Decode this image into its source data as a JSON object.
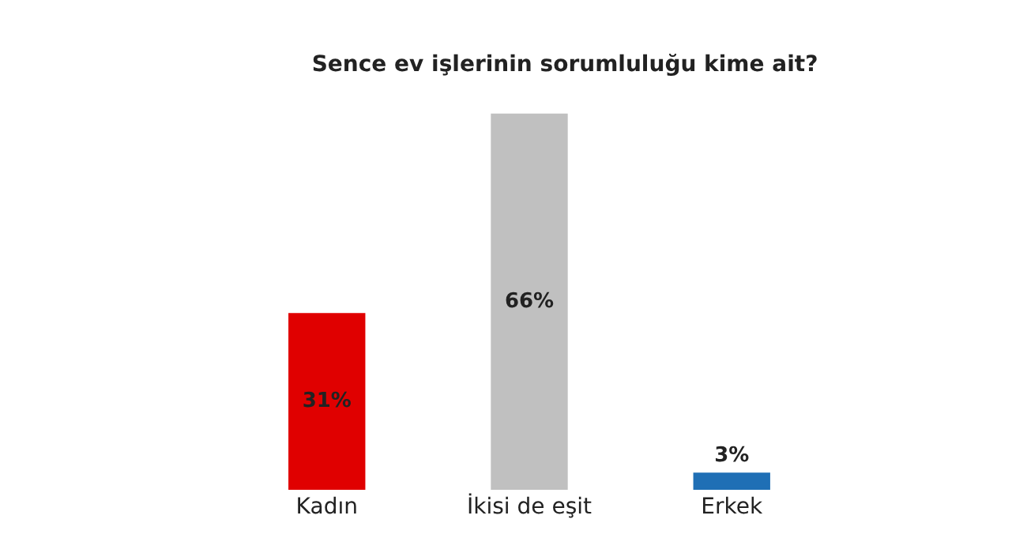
{
  "chart_data": {
    "type": "bar",
    "title": "Sence ev işlerinin sorumluluğu kime ait?",
    "categories": [
      "Kadın",
      "İkisi de eşit",
      "Erkek"
    ],
    "values": [
      31,
      66,
      3
    ],
    "colors": [
      "#e00000",
      "#c0c0c0",
      "#1f6fb5"
    ],
    "value_labels": [
      "31%",
      "66%",
      "3%"
    ]
  }
}
